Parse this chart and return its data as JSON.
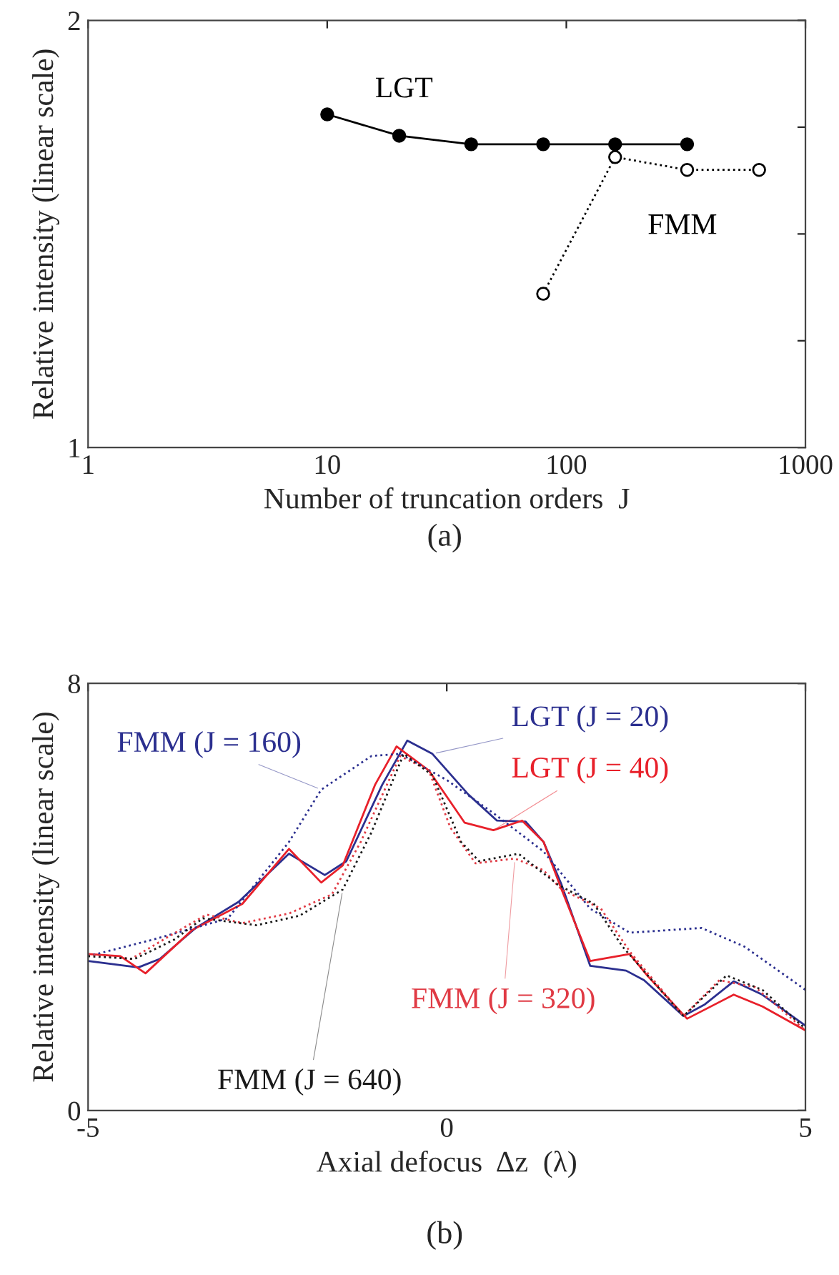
{
  "chart_data": [
    {
      "type": "line",
      "xlabel": "Number of truncation orders  J",
      "ylabel": "Relative intensity (linear scale)",
      "log": "x",
      "xlim": [
        1,
        1000
      ],
      "xticks": [
        1,
        10,
        100,
        1000
      ],
      "ylim": [
        1,
        2
      ],
      "yticks": [
        1,
        {
          "value": 1.25,
          "label": null
        },
        {
          "value": 1.5,
          "label": null
        },
        {
          "value": 1.75,
          "label": null
        },
        2
      ],
      "grid": false,
      "legend": false,
      "annotations": [
        "(a)"
      ],
      "series": [
        {
          "name": "LGT",
          "color": "#000000",
          "marker": "circle",
          "line_style": "solid",
          "x": [
            10,
            20,
            40,
            80,
            160,
            320
          ],
          "values": [
            1.78,
            1.73,
            1.71,
            1.71,
            1.71,
            1.71
          ]
        },
        {
          "name": "FMM",
          "color": "#000000",
          "marker": "circle",
          "line_style": "dotted",
          "x": [
            80,
            160,
            320,
            640
          ],
          "values": [
            1.36,
            1.68,
            1.65,
            1.65
          ]
        }
      ]
    },
    {
      "type": "line",
      "xlabel": "Axial defocus  Δz  (λ)",
      "ylabel": "Relative intensity (linear scale)",
      "xlim": [
        -5,
        5
      ],
      "xticks": [
        -5,
        0,
        5
      ],
      "ylim": [
        0,
        8
      ],
      "yticks": [
        0,
        8
      ],
      "grid": false,
      "legend": false,
      "annotations": [
        "(b)"
      ],
      "series": [
        {
          "name": "LGT (J = 20)",
          "color": "#2b2f8f",
          "line_style": "solid",
          "x": [
            -5,
            -4.3,
            -4,
            -3.5,
            -2.9,
            -2.2,
            -1.7,
            -1.4,
            -0.9,
            -0.55,
            -0.2,
            0.3,
            0.7,
            1.1,
            1.35,
            1.6,
            2,
            2.5,
            2.75,
            3.3,
            3.6,
            4,
            4.4,
            5
          ],
          "values": [
            2.8,
            2.68,
            2.84,
            3.42,
            3.91,
            4.81,
            4.41,
            4.67,
            6.1,
            6.93,
            6.68,
            5.92,
            5.43,
            5.41,
            5.03,
            4.23,
            2.71,
            2.62,
            2.44,
            1.77,
            1.99,
            2.42,
            2.17,
            1.59
          ]
        },
        {
          "name": "LGT (J = 40)",
          "color": "#e8202a",
          "line_style": "solid",
          "x": [
            -5,
            -4.55,
            -4.2,
            -3.55,
            -2.85,
            -2.2,
            -1.75,
            -1.45,
            -1,
            -0.7,
            -0.25,
            0.25,
            0.65,
            1.05,
            1.35,
            1.6,
            2,
            2.55,
            2.8,
            3.35,
            4,
            4.4,
            5
          ],
          "values": [
            2.93,
            2.89,
            2.57,
            3.38,
            3.87,
            4.9,
            4.27,
            4.59,
            6.1,
            6.82,
            6.37,
            5.39,
            5.25,
            5.43,
            5.03,
            4.14,
            2.8,
            2.93,
            2.52,
            1.72,
            2.17,
            1.95,
            1.5
          ]
        },
        {
          "name": "FMM (J = 160)",
          "color": "#2b2f8f",
          "line_style": "dotted",
          "x": [
            -5,
            -4.1,
            -3.05,
            -2.2,
            -1.75,
            -1.05,
            -0.65,
            0,
            0.65,
            1.35,
            2,
            2.55,
            3.55,
            4.15,
            5
          ],
          "values": [
            2.89,
            3.2,
            3.6,
            5.03,
            6.01,
            6.64,
            6.68,
            6.19,
            5.57,
            4.85,
            3.78,
            3.33,
            3.42,
            3.07,
            2.26
          ]
        },
        {
          "name": "FMM (J = 320)",
          "color": "#e03a44",
          "line_style": "dotted",
          "x": [
            -5,
            -4.4,
            -3.9,
            -3.35,
            -2.85,
            -2.2,
            -1.6,
            -1.2,
            -0.65,
            -0.25,
            0.05,
            0.4,
            0.95,
            1.35,
            1.6,
            2.15,
            2.55,
            3.3,
            3.8,
            4.3,
            5
          ],
          "values": [
            2.93,
            2.84,
            3.24,
            3.67,
            3.51,
            3.69,
            4.05,
            5.03,
            6.64,
            6.37,
            5.3,
            4.63,
            4.72,
            4.5,
            4.14,
            3.78,
            2.98,
            1.77,
            2.44,
            2.31,
            1.5
          ]
        },
        {
          "name": "FMM (J = 640)",
          "color": "#1a1a1a",
          "line_style": "dotted",
          "x": [
            -5,
            -4.35,
            -3.8,
            -3.4,
            -2.65,
            -2.05,
            -1.45,
            -1.05,
            -0.6,
            -0.2,
            0.2,
            0.45,
            1,
            1.55,
            2.05,
            2.45,
            3.3,
            3.9,
            4.4,
            5
          ],
          "values": [
            2.89,
            2.84,
            3.2,
            3.6,
            3.47,
            3.65,
            4.14,
            5.21,
            6.68,
            6.28,
            5.03,
            4.67,
            4.81,
            4.23,
            3.87,
            3.07,
            1.77,
            2.53,
            2.26,
            1.53
          ]
        }
      ]
    }
  ]
}
